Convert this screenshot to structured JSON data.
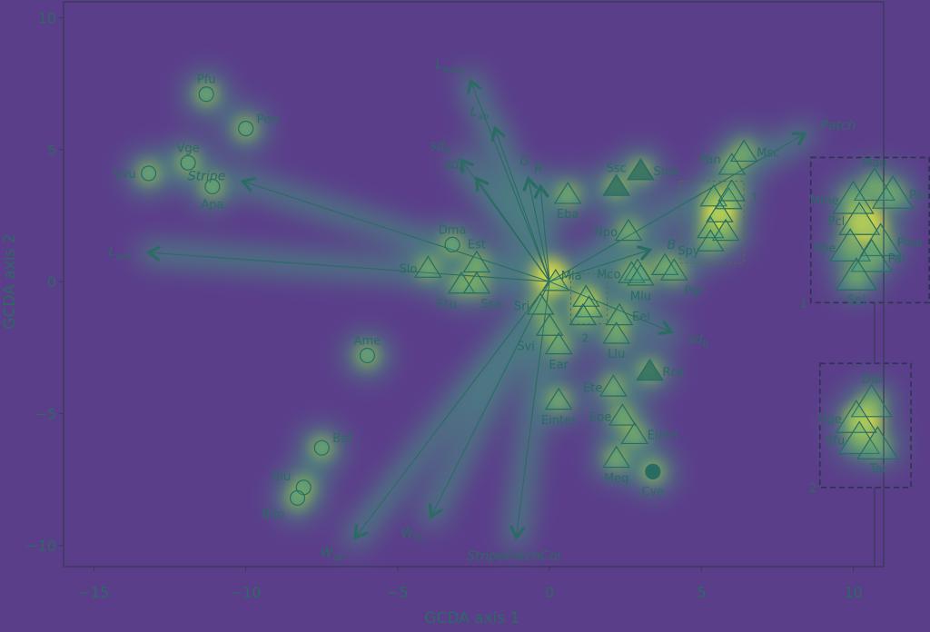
{
  "chart_data": {
    "type": "scatter",
    "xlabel": "GCDA axis 1",
    "ylabel": "GCDA axis 2",
    "xlim": [
      -16,
      11
    ],
    "ylim": [
      -10.8,
      10.6
    ],
    "xticks": [
      -15,
      -10,
      -5,
      0,
      5,
      10
    ],
    "yticks": [
      -10,
      -5,
      0,
      5,
      10
    ],
    "xtick_labels": [
      "−15",
      "−10",
      "−5",
      "0",
      "5",
      "10"
    ],
    "ytick_labels": [
      "−10",
      "−5",
      "0",
      "5",
      "10"
    ],
    "background_color": "#5b3e8a",
    "heat_colors": [
      "#2b7d8f",
      "#3fae7c",
      "#b8d83a",
      "#f4ee3a"
    ],
    "marker_color": "#3e9a8f",
    "arrow_color": "#2a6b62",
    "points": [
      {
        "label": "Pfu",
        "x": -11.3,
        "y": 7.1,
        "marker": "circle"
      },
      {
        "label": "Pdo",
        "x": -10.0,
        "y": 5.8,
        "marker": "circle"
      },
      {
        "label": "Vge",
        "x": -11.9,
        "y": 4.5,
        "marker": "circle"
      },
      {
        "label": "Vvu",
        "x": -13.2,
        "y": 4.1,
        "marker": "circle"
      },
      {
        "label": "Apa",
        "x": -11.1,
        "y": 3.6,
        "marker": "circle"
      },
      {
        "label": "Dma",
        "x": -3.2,
        "y": 1.4,
        "marker": "circle"
      },
      {
        "label": "Ame",
        "x": -6.0,
        "y": -2.8,
        "marker": "circle"
      },
      {
        "label": "Baf",
        "x": -7.5,
        "y": -6.3,
        "marker": "circle"
      },
      {
        "label": "Blu",
        "x": -8.1,
        "y": -7.8,
        "marker": "circle"
      },
      {
        "label": "Bim",
        "x": -8.3,
        "y": -8.2,
        "marker": "circle"
      },
      {
        "label": "Cve",
        "x": 3.4,
        "y": -7.2,
        "marker": "filled-circle"
      },
      {
        "label": "Slo",
        "x": -4.0,
        "y": 0.5,
        "marker": "triangle"
      },
      {
        "label": "Est",
        "x": -2.4,
        "y": 0.7,
        "marker": "triangle"
      },
      {
        "label": "Etu",
        "x": -2.9,
        "y": -0.1,
        "marker": "triangle"
      },
      {
        "label": "Ssa",
        "x": -2.4,
        "y": -0.1,
        "marker": "triangle"
      },
      {
        "label": "Mla",
        "x": 0.2,
        "y": 0.0,
        "marker": "triangle"
      },
      {
        "label": "Sri",
        "x": -0.3,
        "y": -0.9,
        "marker": "triangle"
      },
      {
        "label": "Svi",
        "x": 0.0,
        "y": -1.7,
        "marker": "triangle"
      },
      {
        "label": "Ear",
        "x": 0.3,
        "y": -2.4,
        "marker": "triangle"
      },
      {
        "label": "Einter",
        "x": 0.3,
        "y": -4.5,
        "marker": "triangle"
      },
      {
        "label": "Eba",
        "x": 0.6,
        "y": 3.3,
        "marker": "triangle"
      },
      {
        "label": "Ssc",
        "x": 2.2,
        "y": 3.6,
        "marker": "filled-triangle"
      },
      {
        "label": "Sme",
        "x": 3.0,
        "y": 4.2,
        "marker": "filled-triangle"
      },
      {
        "label": "Npo",
        "x": 2.6,
        "y": 1.9,
        "marker": "triangle"
      },
      {
        "label": "Mco",
        "x": 2.7,
        "y": 0.3,
        "marker": "triangle"
      },
      {
        "label": "Mlu",
        "x": 3.0,
        "y": 0.2,
        "marker": "triangle"
      },
      {
        "label": "Spy",
        "x": 3.8,
        "y": 0.6,
        "marker": "triangle"
      },
      {
        "label": "Pgr",
        "x": 4.1,
        "y": 0.4,
        "marker": "triangle"
      },
      {
        "label": "Eel",
        "x": 2.3,
        "y": -1.3,
        "marker": "triangle"
      },
      {
        "label": "Llu",
        "x": 2.2,
        "y": -2.0,
        "marker": "triangle"
      },
      {
        "label": "Rca",
        "x": 3.3,
        "y": -3.4,
        "marker": "filled-triangle"
      },
      {
        "label": "Ete",
        "x": 2.1,
        "y": -4.0,
        "marker": "triangle"
      },
      {
        "label": "Epe",
        "x": 2.4,
        "y": -5.1,
        "marker": "triangle"
      },
      {
        "label": "Eintri",
        "x": 2.8,
        "y": -5.8,
        "marker": "triangle"
      },
      {
        "label": "Meq",
        "x": 2.2,
        "y": -6.7,
        "marker": "triangle"
      },
      {
        "label": "Pan",
        "x": 6.0,
        "y": 4.4,
        "marker": "triangle"
      },
      {
        "label": "Msc",
        "x": 6.4,
        "y": 4.9,
        "marker": "triangle"
      },
      {
        "label": "Mau",
        "x": 10.7,
        "y": 3.6,
        "marker": "triangle"
      },
      {
        "label": "Psc",
        "x": 11.3,
        "y": 3.3,
        "marker": "triangle"
      },
      {
        "label": "Mme",
        "x": 10.0,
        "y": 3.1,
        "marker": "triangle"
      },
      {
        "label": "Pcl",
        "x": 10.2,
        "y": 2.3,
        "marker": "triangle"
      },
      {
        "label": "Pma",
        "x": 10.9,
        "y": 1.5,
        "marker": "triangle"
      },
      {
        "label": "Ppe",
        "x": 9.9,
        "y": 1.3,
        "marker": "triangle"
      },
      {
        "label": "Pal",
        "x": 10.6,
        "y": 0.9,
        "marker": "triangle"
      },
      {
        "label": "Spi",
        "x": 10.1,
        "y": 0.2,
        "marker": "triangle"
      },
      {
        "label": "Dal",
        "x": 10.6,
        "y": -4.6,
        "marker": "triangle"
      },
      {
        "label": "Hpe",
        "x": 10.1,
        "y": -5.2,
        "marker": "triangle"
      },
      {
        "label": "Sfu",
        "x": 10.2,
        "y": -6.0,
        "marker": "triangle"
      },
      {
        "label": "Tal",
        "x": 10.8,
        "y": -6.2,
        "marker": "triangle"
      }
    ],
    "unlabeled_points": [
      {
        "x": 1.2,
        "y": -0.6
      },
      {
        "x": 1.3,
        "y": -1.0
      },
      {
        "x": 1.1,
        "y": -1.3
      },
      {
        "x": 5.4,
        "y": 3.2
      },
      {
        "x": 5.9,
        "y": 3.1
      },
      {
        "x": 5.6,
        "y": 2.6
      },
      {
        "x": 5.3,
        "y": 2.0
      },
      {
        "x": 5.8,
        "y": 1.9
      },
      {
        "x": 5.3,
        "y": 1.5
      },
      {
        "x": 6.0,
        "y": 3.4
      },
      {
        "x": 2.9,
        "y": 0.4
      }
    ],
    "vectors": [
      {
        "label": "L",
        "sub": "wing",
        "x": -2.6,
        "y": 7.6
      },
      {
        "label": "L",
        "sub": "ab",
        "x": -1.8,
        "y": 5.8
      },
      {
        "label": "sd",
        "sub": "R",
        "x": -2.9,
        "y": 4.6
      },
      {
        "label": "sd",
        "sub": "G",
        "x": -2.4,
        "y": 3.9
      },
      {
        "label": "G",
        "sub": "",
        "x": -0.7,
        "y": 3.9
      },
      {
        "label": "R",
        "sub": "",
        "x": -0.3,
        "y": 3.6
      },
      {
        "label": "Stripe",
        "sub": "",
        "x": -10.1,
        "y": 3.8
      },
      {
        "label": "L",
        "sub": "ant",
        "x": -13.2,
        "y": 1.1
      },
      {
        "label": "Patch",
        "sub": "",
        "x": 8.4,
        "y": 5.6
      },
      {
        "label": "B",
        "sub": "",
        "x": 3.3,
        "y": 1.2
      },
      {
        "label": "sd",
        "sub": "B",
        "x": 4.0,
        "y": -1.9
      },
      {
        "label": "W",
        "sub": "ab",
        "x": -6.4,
        "y": -9.7
      },
      {
        "label": "W",
        "sub": "th",
        "x": -3.9,
        "y": -8.9
      },
      {
        "label": "StripePatchCol",
        "sub": "",
        "x": -1.1,
        "y": -9.7
      }
    ],
    "groups": [
      {
        "label": "1",
        "x0": 8.6,
        "x1": 12.5,
        "y0": -0.8,
        "y1": 4.7
      },
      {
        "label": "2",
        "x0": 8.9,
        "x1": 11.9,
        "y0": -7.8,
        "y1": -3.1
      }
    ],
    "inner_boxes": [
      {
        "label": "1",
        "x0": 4.3,
        "x1": 6.4,
        "y0": 0.7,
        "y1": 3.8
      },
      {
        "label": "2",
        "x0": 0.7,
        "x1": 1.9,
        "y0": -1.6,
        "y1": 0.3
      }
    ]
  }
}
